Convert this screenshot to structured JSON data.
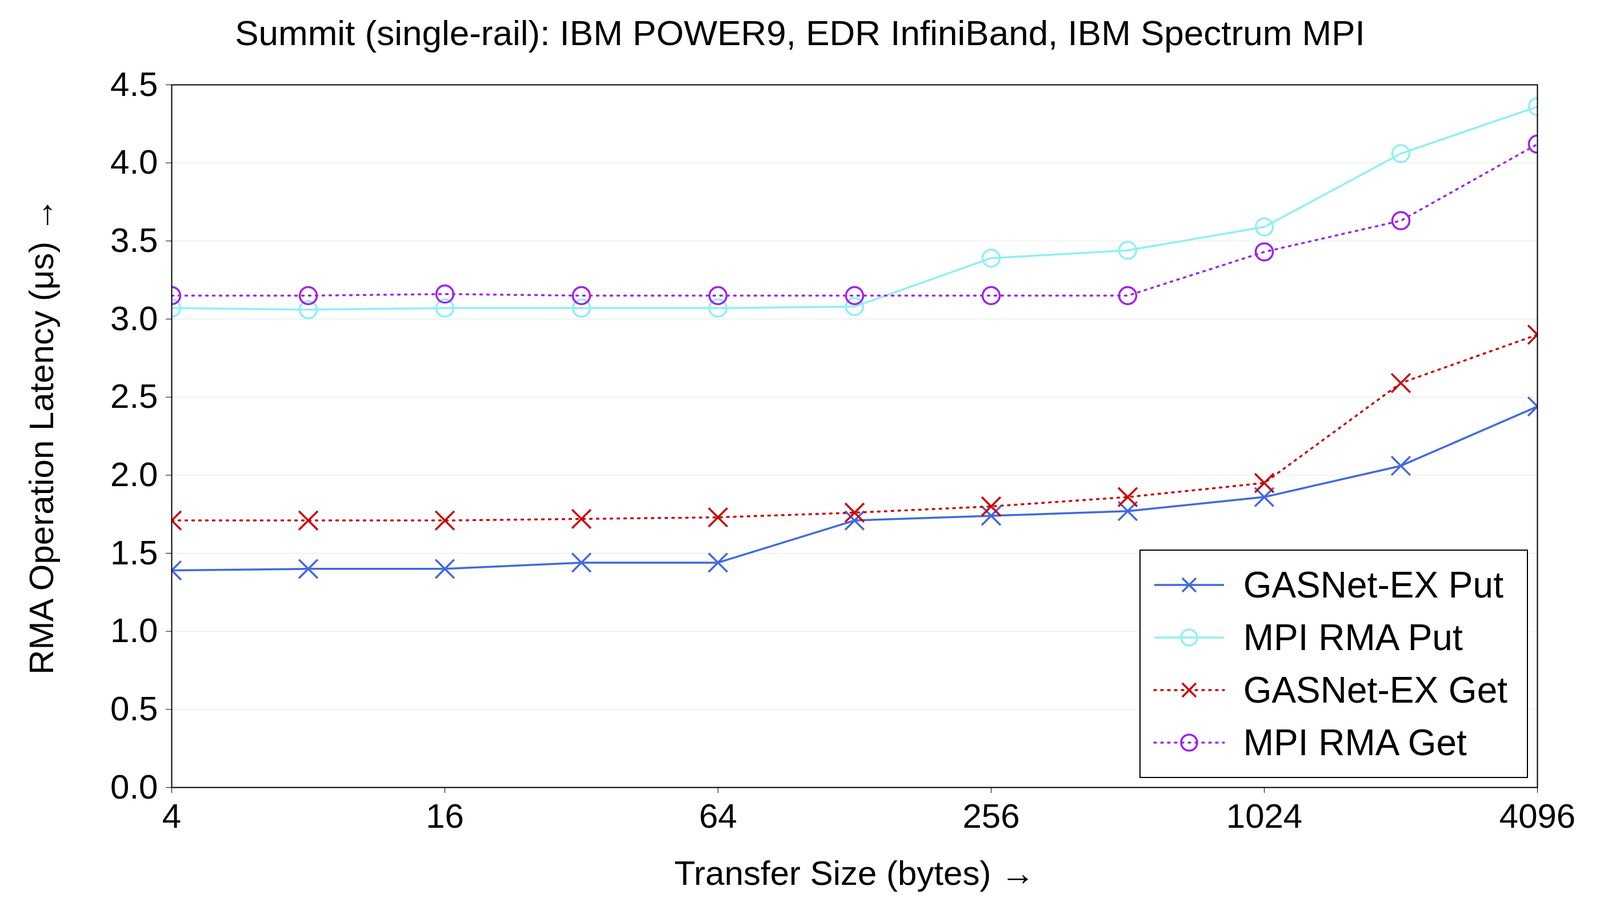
{
  "chart_data": {
    "type": "line",
    "title": "Summit (single-rail): IBM POWER9, EDR InfiniBand, IBM Spectrum MPI",
    "x_label": "Transfer Size (bytes)",
    "y_label": "RMA Operation Latency (μs)",
    "x": [
      4,
      8,
      16,
      32,
      64,
      128,
      256,
      512,
      1024,
      2048,
      4096
    ],
    "log": "x",
    "xlim": [
      4,
      4096
    ],
    "xticks": [
      4,
      16,
      64,
      256,
      1024,
      4096
    ],
    "ylim": [
      0,
      4.5
    ],
    "yticks": [
      {
        "value": 0,
        "label": "0.0"
      },
      0.5,
      {
        "value": 1,
        "label": "1.0"
      },
      1.5,
      {
        "value": 2,
        "label": "2.0"
      },
      2.5,
      {
        "value": 3,
        "label": "3.0"
      },
      3.5,
      {
        "value": 4,
        "label": "4.0"
      },
      4.5
    ],
    "grid": true,
    "legend": "bottom-right",
    "series": [
      {
        "name": "GASNet-EX Put",
        "color": "#4169e1",
        "marker": "x",
        "line_style": "solid",
        "values": [
          1.39,
          1.4,
          1.4,
          1.44,
          1.44,
          1.71,
          1.74,
          1.77,
          1.86,
          2.06,
          2.44
        ]
      },
      {
        "name": "MPI RMA Put",
        "color": "#8ef0f5",
        "marker": "circle",
        "line_style": "solid",
        "values": [
          3.07,
          3.06,
          3.07,
          3.07,
          3.07,
          3.08,
          3.39,
          3.44,
          3.59,
          4.06,
          4.36
        ]
      },
      {
        "name": "GASNet-EX Get",
        "color": "#cc0000",
        "marker": "x",
        "line_style": "dotted",
        "values": [
          1.71,
          1.71,
          1.71,
          1.72,
          1.73,
          1.76,
          1.8,
          1.86,
          1.95,
          2.59,
          2.9
        ]
      },
      {
        "name": "MPI RMA Get",
        "color": "#a020f0",
        "marker": "circle",
        "line_style": "dotted",
        "values": [
          3.15,
          3.15,
          3.16,
          3.15,
          3.15,
          3.15,
          3.15,
          3.15,
          3.43,
          3.63,
          4.12
        ]
      }
    ]
  }
}
